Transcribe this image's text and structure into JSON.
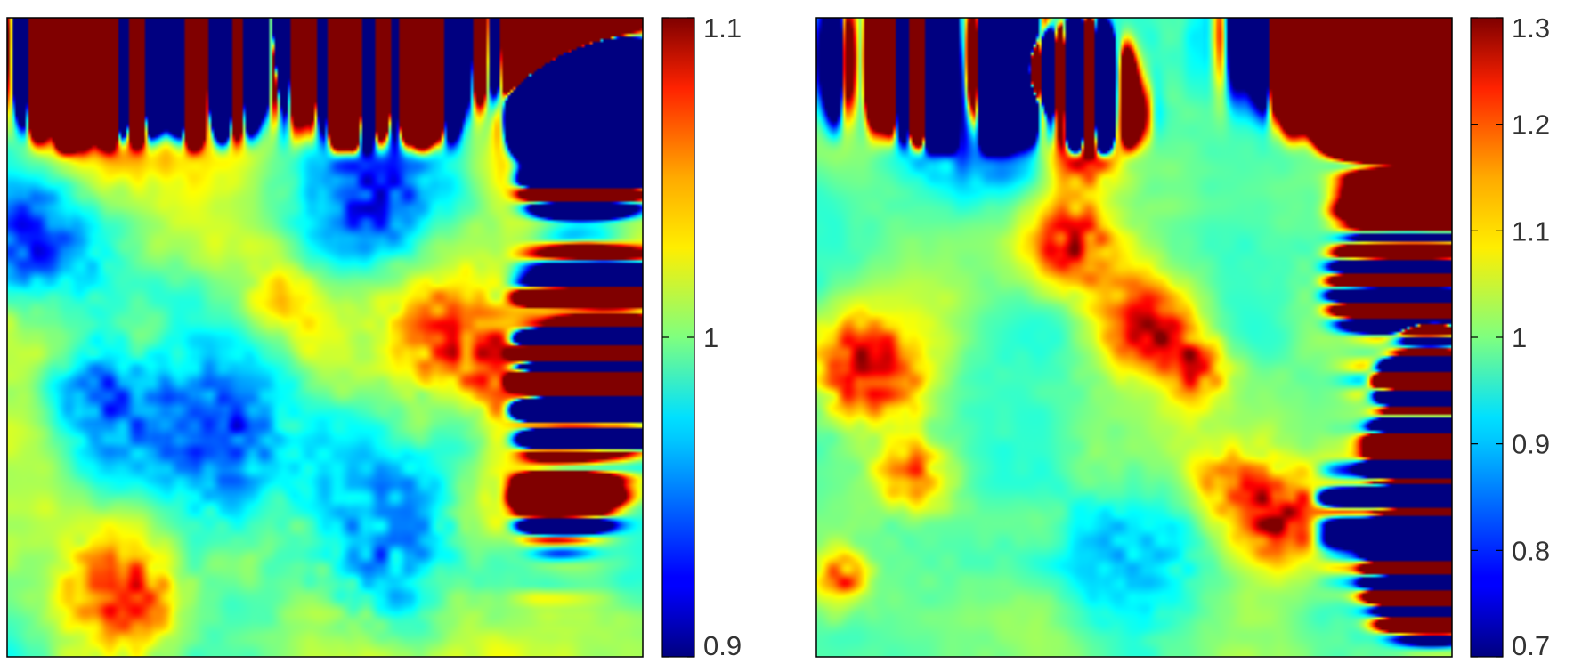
{
  "chart_data": [
    {
      "type": "heatmap",
      "title": "",
      "xlabel": "",
      "ylabel": "",
      "colormap": "jet",
      "colorbar": {
        "range": [
          0.9,
          1.1
        ],
        "ticks": [
          0.9,
          1,
          1.1
        ],
        "tick_labels": [
          "0.9",
          "1",
          "1.1"
        ]
      },
      "field": {
        "base": 1.0,
        "spread": 0.02,
        "hotspots": [
          {
            "x": 0.22,
            "y": 0.91,
            "value": 1.09,
            "sigma": 0.09
          },
          {
            "x": 0.1,
            "y": 0.87,
            "value": 1.08,
            "sigma": 0.06
          },
          {
            "x": 0.85,
            "y": 0.78,
            "value": 1.06,
            "sigma": 0.05
          },
          {
            "x": 0.7,
            "y": 0.5,
            "value": 1.09,
            "sigma": 0.07
          },
          {
            "x": 0.83,
            "y": 0.45,
            "value": 1.09,
            "sigma": 0.06
          },
          {
            "x": 0.92,
            "y": 0.47,
            "value": 1.08,
            "sigma": 0.05
          },
          {
            "x": 0.44,
            "y": 0.55,
            "value": 1.05,
            "sigma": 0.05
          },
          {
            "x": 0.8,
            "y": 0.25,
            "value": 1.05,
            "sigma": 0.05
          },
          {
            "x": 0.18,
            "y": 0.1,
            "value": 1.09,
            "sigma": 0.06
          },
          {
            "x": 0.6,
            "y": 0.98,
            "value": 1.04,
            "sigma": 0.05
          },
          {
            "x": 0.6,
            "y": 0.95,
            "value": 0.91,
            "sigma": 0.08
          },
          {
            "x": 0.58,
            "y": 0.72,
            "value": 0.92,
            "sigma": 0.07
          },
          {
            "x": 0.05,
            "y": 0.65,
            "value": 0.93,
            "sigma": 0.07
          },
          {
            "x": 0.33,
            "y": 0.35,
            "value": 0.92,
            "sigma": 0.08
          },
          {
            "x": 0.6,
            "y": 0.18,
            "value": 0.92,
            "sigma": 0.09
          },
          {
            "x": 0.15,
            "y": 0.4,
            "value": 0.94,
            "sigma": 0.06
          }
        ]
      }
    },
    {
      "type": "heatmap",
      "title": "",
      "xlabel": "",
      "ylabel": "",
      "colormap": "jet",
      "colorbar": {
        "range": [
          0.7,
          1.3
        ],
        "ticks": [
          0.7,
          0.8,
          0.9,
          1,
          1.1,
          1.2,
          1.3
        ],
        "tick_labels": [
          "0.7",
          "0.8",
          "0.9",
          "1",
          "1.1",
          "1.2",
          "1.3"
        ]
      },
      "field": {
        "base": 0.99,
        "spread": 0.04,
        "hotspots": [
          {
            "x": 0.4,
            "y": 0.9,
            "value": 1.3,
            "sigma": 0.03
          },
          {
            "x": 0.42,
            "y": 0.8,
            "value": 1.3,
            "sigma": 0.04
          },
          {
            "x": 0.4,
            "y": 0.65,
            "value": 1.28,
            "sigma": 0.05
          },
          {
            "x": 0.52,
            "y": 0.52,
            "value": 1.25,
            "sigma": 0.05
          },
          {
            "x": 0.6,
            "y": 0.45,
            "value": 1.25,
            "sigma": 0.04
          },
          {
            "x": 0.08,
            "y": 0.45,
            "value": 1.3,
            "sigma": 0.06
          },
          {
            "x": 0.15,
            "y": 0.28,
            "value": 1.22,
            "sigma": 0.04
          },
          {
            "x": 0.73,
            "y": 0.22,
            "value": 1.3,
            "sigma": 0.05
          },
          {
            "x": 0.64,
            "y": 0.28,
            "value": 1.15,
            "sigma": 0.04
          },
          {
            "x": 0.96,
            "y": 0.3,
            "value": 1.25,
            "sigma": 0.04
          },
          {
            "x": 0.95,
            "y": 0.15,
            "value": 1.2,
            "sigma": 0.04
          },
          {
            "x": 0.95,
            "y": 0.45,
            "value": 1.15,
            "sigma": 0.03
          },
          {
            "x": 0.04,
            "y": 0.12,
            "value": 1.22,
            "sigma": 0.03
          },
          {
            "x": 0.2,
            "y": 0.85,
            "value": 0.8,
            "sigma": 0.07
          },
          {
            "x": 0.3,
            "y": 0.8,
            "value": 0.82,
            "sigma": 0.05
          },
          {
            "x": 0.88,
            "y": 0.9,
            "value": 0.85,
            "sigma": 0.08
          },
          {
            "x": 0.5,
            "y": 0.15,
            "value": 0.88,
            "sigma": 0.08
          },
          {
            "x": 0.85,
            "y": 0.6,
            "value": 0.93,
            "sigma": 0.07
          }
        ]
      }
    }
  ]
}
